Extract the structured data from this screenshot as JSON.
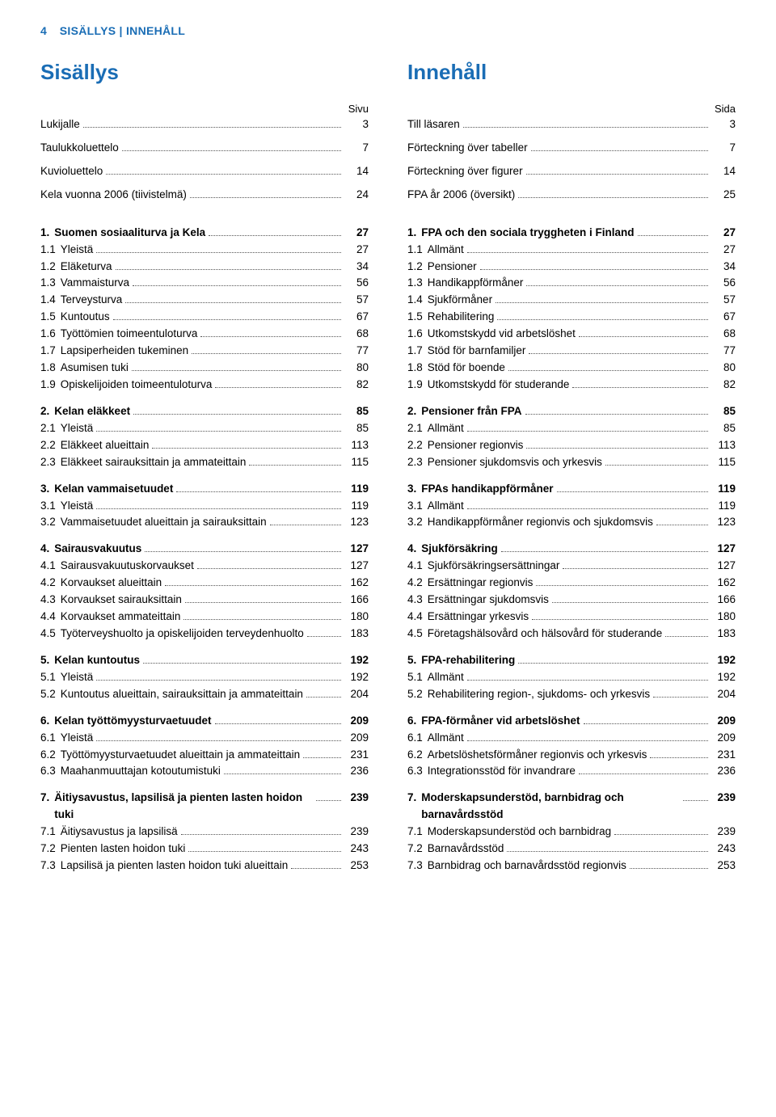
{
  "header": {
    "page_num": "4",
    "label": "SISÄLLYS | INNEHÅLL"
  },
  "left": {
    "title": "Sisällys",
    "page_word": "Sivu",
    "top": [
      {
        "label": "Lukijalle",
        "page": "3"
      },
      {
        "label": "Taulukkoluettelo",
        "page": "7"
      },
      {
        "label": "Kuvioluettelo",
        "page": "14"
      },
      {
        "label": "Kela vuonna 2006 (tiivistelmä)",
        "page": "24"
      }
    ],
    "sections": [
      {
        "head": {
          "num": "1.",
          "label": "Suomen sosiaaliturva ja Kela",
          "page": "27"
        },
        "items": [
          {
            "num": "1.1",
            "label": "Yleistä",
            "page": "27"
          },
          {
            "num": "1.2",
            "label": "Eläketurva",
            "page": "34"
          },
          {
            "num": "1.3",
            "label": "Vammaisturva",
            "page": "56"
          },
          {
            "num": "1.4",
            "label": "Terveysturva",
            "page": "57"
          },
          {
            "num": "1.5",
            "label": "Kuntoutus",
            "page": "67"
          },
          {
            "num": "1.6",
            "label": "Työttömien toimeentuloturva",
            "page": "68"
          },
          {
            "num": "1.7",
            "label": "Lapsiperheiden tukeminen",
            "page": "77"
          },
          {
            "num": "1.8",
            "label": "Asumisen tuki",
            "page": "80"
          },
          {
            "num": "1.9",
            "label": "Opiskelijoiden toimeentuloturva",
            "page": "82"
          }
        ]
      },
      {
        "head": {
          "num": "2.",
          "label": "Kelan eläkkeet",
          "page": "85"
        },
        "items": [
          {
            "num": "2.1",
            "label": "Yleistä",
            "page": "85"
          },
          {
            "num": "2.2",
            "label": "Eläkkeet alueittain",
            "page": "113"
          },
          {
            "num": "2.3",
            "label": "Eläkkeet sairauksittain ja ammateittain",
            "page": "115"
          }
        ]
      },
      {
        "head": {
          "num": "3.",
          "label": "Kelan vammaisetuudet",
          "page": "119"
        },
        "items": [
          {
            "num": "3.1",
            "label": "Yleistä",
            "page": "119"
          },
          {
            "num": "3.2",
            "label": "Vammaisetuudet alueittain ja sairauksittain",
            "page": "123"
          }
        ]
      },
      {
        "head": {
          "num": "4.",
          "label": "Sairausvakuutus",
          "page": "127"
        },
        "items": [
          {
            "num": "4.1",
            "label": "Sairausvakuutuskorvaukset",
            "page": "127"
          },
          {
            "num": "4.2",
            "label": "Korvaukset alueittain",
            "page": "162"
          },
          {
            "num": "4.3",
            "label": "Korvaukset sairauksittain",
            "page": "166"
          },
          {
            "num": "4.4",
            "label": "Korvaukset ammateittain",
            "page": "180"
          },
          {
            "num": "4.5",
            "label": "Työterveyshuolto ja opiskelijoiden terveydenhuolto",
            "page": "183"
          }
        ]
      },
      {
        "head": {
          "num": "5.",
          "label": "Kelan kuntoutus",
          "page": "192"
        },
        "items": [
          {
            "num": "5.1",
            "label": "Yleistä",
            "page": "192"
          },
          {
            "num": "5.2",
            "label": "Kuntoutus alueittain, sairauksittain ja ammateittain",
            "page": "204"
          }
        ]
      },
      {
        "head": {
          "num": "6.",
          "label": "Kelan työttömyysturvaetuudet",
          "page": "209"
        },
        "items": [
          {
            "num": "6.1",
            "label": "Yleistä",
            "page": "209"
          },
          {
            "num": "6.2",
            "label": "Työttömyysturvaetuudet alueittain ja ammateittain",
            "page": "231"
          },
          {
            "num": "6.3",
            "label": "Maahanmuuttajan kotoutumistuki",
            "page": "236"
          }
        ]
      },
      {
        "head": {
          "num": "7.",
          "label": "Äitiysavustus, lapsilisä ja pienten lasten hoidon tuki",
          "page": "239"
        },
        "items": [
          {
            "num": "7.1",
            "label": "Äitiysavustus ja lapsilisä",
            "page": "239"
          },
          {
            "num": "7.2",
            "label": "Pienten lasten hoidon tuki",
            "page": "243"
          },
          {
            "num": "7.3",
            "label": "Lapsilisä ja pienten lasten hoidon tuki alueittain",
            "page": "253"
          }
        ]
      }
    ]
  },
  "right": {
    "title": "Innehåll",
    "page_word": "Sida",
    "top": [
      {
        "label": "Till läsaren",
        "page": "3"
      },
      {
        "label": "Förteckning över tabeller",
        "page": "7"
      },
      {
        "label": "Förteckning över figurer",
        "page": "14"
      },
      {
        "label": "FPA år 2006 (översikt)",
        "page": "25"
      }
    ],
    "sections": [
      {
        "head": {
          "num": "1.",
          "label": "FPA och den sociala tryggheten i Finland",
          "page": "27"
        },
        "items": [
          {
            "num": "1.1",
            "label": "Allmänt",
            "page": "27"
          },
          {
            "num": "1.2",
            "label": "Pensioner",
            "page": "34"
          },
          {
            "num": "1.3",
            "label": "Handikappförmåner",
            "page": "56"
          },
          {
            "num": "1.4",
            "label": "Sjukförmåner",
            "page": "57"
          },
          {
            "num": "1.5",
            "label": "Rehabilitering",
            "page": "67"
          },
          {
            "num": "1.6",
            "label": "Utkomstskydd vid arbetslöshet",
            "page": "68"
          },
          {
            "num": "1.7",
            "label": "Stöd för barnfamiljer",
            "page": "77"
          },
          {
            "num": "1.8",
            "label": "Stöd för boende",
            "page": "80"
          },
          {
            "num": "1.9",
            "label": "Utkomstskydd för studerande",
            "page": "82"
          }
        ]
      },
      {
        "head": {
          "num": "2.",
          "label": "Pensioner från FPA",
          "page": "85"
        },
        "items": [
          {
            "num": "2.1",
            "label": "Allmänt",
            "page": "85"
          },
          {
            "num": "2.2",
            "label": "Pensioner regionvis",
            "page": "113"
          },
          {
            "num": "2.3",
            "label": "Pensioner sjukdomsvis och yrkesvis",
            "page": "115"
          }
        ]
      },
      {
        "head": {
          "num": "3.",
          "label": "FPAs handikappförmåner",
          "page": "119"
        },
        "items": [
          {
            "num": "3.1",
            "label": "Allmänt",
            "page": "119"
          },
          {
            "num": "3.2",
            "label": "Handikappförmåner regionvis och sjukdomsvis",
            "page": "123"
          }
        ]
      },
      {
        "head": {
          "num": "4.",
          "label": "Sjukförsäkring",
          "page": "127"
        },
        "items": [
          {
            "num": "4.1",
            "label": "Sjukförsäkringsersättningar",
            "page": "127"
          },
          {
            "num": "4.2",
            "label": "Ersättningar regionvis",
            "page": "162"
          },
          {
            "num": "4.3",
            "label": "Ersättningar sjukdomsvis",
            "page": "166"
          },
          {
            "num": "4.4",
            "label": "Ersättningar yrkesvis",
            "page": "180"
          },
          {
            "num": "4.5",
            "label": "Företagshälsovård och hälsovård för studerande",
            "page": "183"
          }
        ]
      },
      {
        "head": {
          "num": "5.",
          "label": "FPA-rehabilitering",
          "page": "192"
        },
        "items": [
          {
            "num": "5.1",
            "label": "Allmänt",
            "page": "192"
          },
          {
            "num": "5.2",
            "label": "Rehabilitering region-, sjukdoms- och yrkesvis",
            "page": "204"
          }
        ]
      },
      {
        "head": {
          "num": "6.",
          "label": "FPA-förmåner vid arbetslöshet",
          "page": "209"
        },
        "items": [
          {
            "num": "6.1",
            "label": "Allmänt",
            "page": "209"
          },
          {
            "num": "6.2",
            "label": "Arbetslöshetsförmåner regionvis och yrkesvis",
            "page": "231"
          },
          {
            "num": "6.3",
            "label": "Integrationsstöd för invandrare",
            "page": "236"
          }
        ]
      },
      {
        "head": {
          "num": "7.",
          "label": "Moderskapsunderstöd, barnbidrag och barnavårdsstöd",
          "page": "239"
        },
        "items": [
          {
            "num": "7.1",
            "label": "Moderskapsunderstöd och barnbidrag",
            "page": "239"
          },
          {
            "num": "7.2",
            "label": "Barnavårdsstöd",
            "page": "243"
          },
          {
            "num": "7.3",
            "label": "Barnbidrag och barnavårdsstöd regionvis",
            "page": "253"
          }
        ]
      }
    ]
  }
}
